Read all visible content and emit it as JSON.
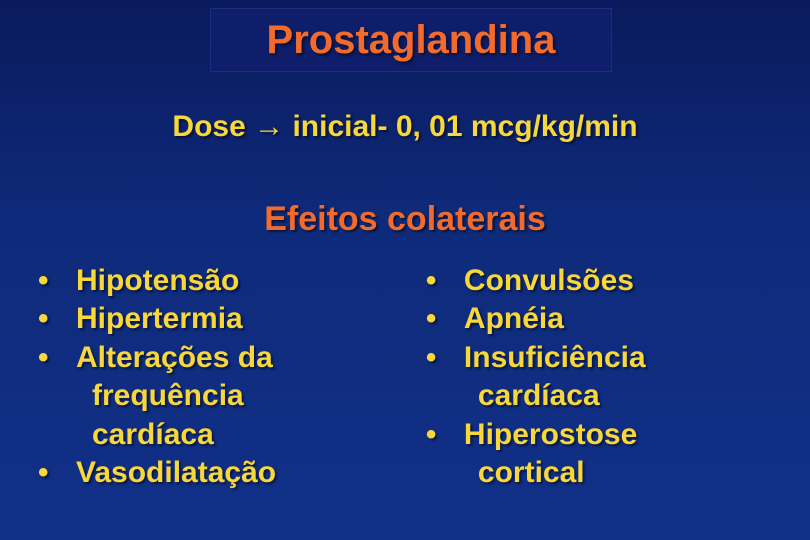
{
  "title": "Prostaglandina",
  "dose_prefix": "Dose ",
  "dose_suffix": " inicial- 0, 01 mcg/kg/min",
  "arrow": "→",
  "subheading": "Efeitos colaterais",
  "left_items": [
    {
      "text": "Hipotensão",
      "dot": true
    },
    {
      "text": "Hipertermia",
      "dot": true
    },
    {
      "text": "Alterações da",
      "dot": true
    },
    {
      "text": "frequência",
      "dot": false
    },
    {
      "text": "cardíaca",
      "dot": false
    },
    {
      "text": "Vasodilatação",
      "dot": true
    }
  ],
  "right_items": [
    {
      "text": "Convulsões",
      "dot": true
    },
    {
      "text": "Apnéia",
      "dot": true
    },
    {
      "text": "Insuficiência",
      "dot": true
    },
    {
      "text": "cardíaca",
      "dot": false
    },
    {
      "text": "Hiperostose",
      "dot": true
    },
    {
      "text": "cortical",
      "dot": false
    }
  ],
  "colors": {
    "title": "#f26b2c",
    "subhead": "#f26b2c",
    "body": "#f7d73b",
    "bg_top": "#0a1a5c",
    "bg_bottom": "#113088"
  }
}
